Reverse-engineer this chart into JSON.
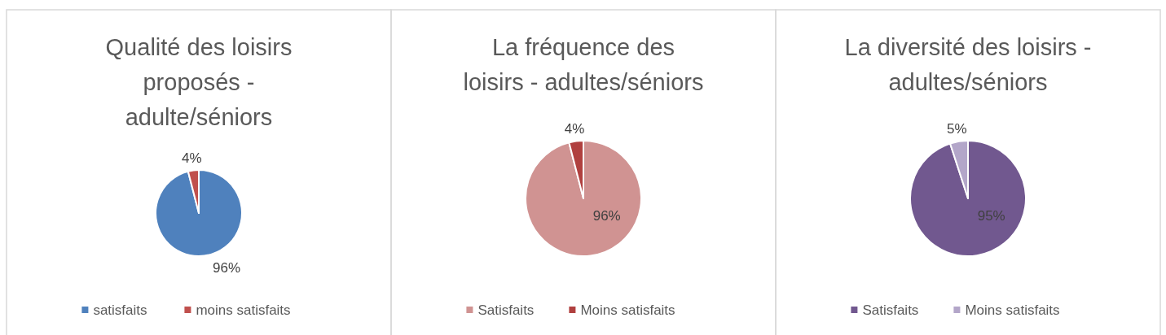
{
  "chart_data": [
    {
      "type": "pie",
      "title": "Qualité des loisirs\nproposés -\nadulte/séniors",
      "categories": [
        "satisfaits",
        "moins satisfaits"
      ],
      "values": [
        96,
        4
      ],
      "colors": [
        "#4f81bd",
        "#c0504d"
      ],
      "value_labels": [
        "96%",
        "4%"
      ],
      "legend": "bottom"
    },
    {
      "type": "pie",
      "title": "La fréquence des\nloisirs - adultes/séniors",
      "categories": [
        "Satisfaits",
        "Moins satisfaits"
      ],
      "values": [
        96,
        4
      ],
      "colors": [
        "#d09392",
        "#b0403f"
      ],
      "value_labels": [
        "96%",
        "4%"
      ],
      "legend": "bottom"
    },
    {
      "type": "pie",
      "title": "La diversité des loisirs -\nadultes/séniors",
      "categories": [
        "Satisfaits",
        "Moins satisfaits"
      ],
      "values": [
        95,
        5
      ],
      "colors": [
        "#71588f",
        "#b3a6c9"
      ],
      "value_labels": [
        "95%",
        "5%"
      ],
      "legend": "bottom"
    }
  ]
}
